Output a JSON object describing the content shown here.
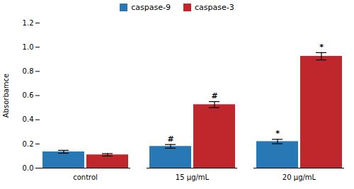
{
  "chart_data": {
    "type": "bar",
    "categories": [
      "control",
      "15 μg/mL",
      "20 μg/mL"
    ],
    "series": [
      {
        "name": "caspase-9",
        "color": "#2878b5",
        "values": [
          0.135,
          0.18,
          0.22
        ],
        "errors": [
          0.012,
          0.015,
          0.018
        ],
        "annotations": [
          null,
          "#",
          "*"
        ]
      },
      {
        "name": "caspase-3",
        "color": "#c0272d",
        "values": [
          0.11,
          0.525,
          0.925
        ],
        "errors": [
          0.01,
          0.025,
          0.03
        ],
        "annotations": [
          null,
          "#",
          "*"
        ]
      }
    ],
    "ylabel": "Absorbamce",
    "ylim": [
      0,
      1.2
    ],
    "yticks": [
      {
        "value": 0,
        "label": "0.0"
      },
      0.2,
      0.4,
      0.6,
      0.8,
      {
        "value": 1,
        "label": "1.0"
      },
      1.2
    ],
    "legend": "upper center",
    "grid": false
  }
}
